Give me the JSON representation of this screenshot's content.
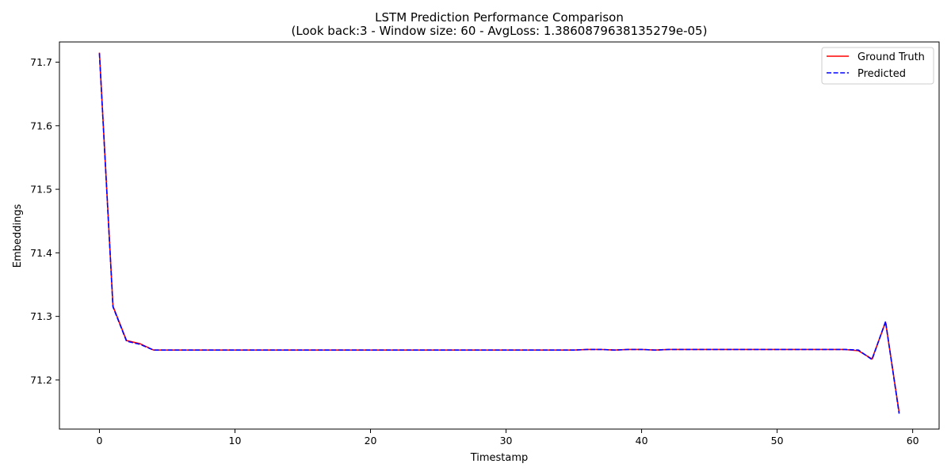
{
  "chart_data": {
    "type": "line",
    "title": "LSTM Prediction Performance Comparison",
    "subtitle": "(Look back:3 - Window size: 60 - AvgLoss: 1.3860879638135279e-05)",
    "xlabel": "Timestamp",
    "ylabel": "Embeddings",
    "xlim": [
      -2.95,
      61.95
    ],
    "ylim": [
      71.1227,
      71.7318
    ],
    "x_ticks": [
      0,
      10,
      20,
      30,
      40,
      50,
      60
    ],
    "y_ticks": [
      71.2,
      71.3,
      71.4,
      71.5,
      71.6,
      71.7
    ],
    "x_tick_labels": [
      "0",
      "10",
      "20",
      "30",
      "40",
      "50",
      "60"
    ],
    "y_tick_labels": [
      "71.2",
      "71.3",
      "71.4",
      "71.5",
      "71.6",
      "71.7"
    ],
    "grid": false,
    "legend_position": "top-right",
    "series": [
      {
        "name": "Ground Truth",
        "color": "#ff0000",
        "style": "solid",
        "x": [
          0,
          1,
          2,
          3,
          4,
          5,
          6,
          7,
          8,
          9,
          10,
          11,
          12,
          13,
          14,
          15,
          16,
          17,
          18,
          19,
          20,
          21,
          22,
          23,
          24,
          25,
          26,
          27,
          28,
          29,
          30,
          31,
          32,
          33,
          34,
          35,
          36,
          37,
          38,
          39,
          40,
          41,
          42,
          43,
          44,
          45,
          46,
          47,
          48,
          49,
          50,
          51,
          52,
          53,
          54,
          55,
          56,
          57,
          58,
          59
        ],
        "values": [
          71.715,
          71.316,
          71.262,
          71.257,
          71.247,
          71.247,
          71.247,
          71.247,
          71.247,
          71.247,
          71.247,
          71.247,
          71.247,
          71.247,
          71.247,
          71.247,
          71.247,
          71.247,
          71.247,
          71.247,
          71.247,
          71.247,
          71.247,
          71.247,
          71.247,
          71.247,
          71.247,
          71.247,
          71.247,
          71.247,
          71.247,
          71.247,
          71.247,
          71.247,
          71.247,
          71.247,
          71.248,
          71.248,
          71.247,
          71.248,
          71.248,
          71.247,
          71.248,
          71.248,
          71.248,
          71.248,
          71.248,
          71.248,
          71.248,
          71.248,
          71.248,
          71.248,
          71.248,
          71.248,
          71.248,
          71.248,
          71.246,
          71.233,
          71.291,
          71.149
        ]
      },
      {
        "name": "Predicted",
        "color": "#0000ff",
        "style": "dashed",
        "x": [
          0,
          1,
          2,
          3,
          4,
          5,
          6,
          7,
          8,
          9,
          10,
          11,
          12,
          13,
          14,
          15,
          16,
          17,
          18,
          19,
          20,
          21,
          22,
          23,
          24,
          25,
          26,
          27,
          28,
          29,
          30,
          31,
          32,
          33,
          34,
          35,
          36,
          37,
          38,
          39,
          40,
          41,
          42,
          43,
          44,
          45,
          46,
          47,
          48,
          49,
          50,
          51,
          52,
          53,
          54,
          55,
          56,
          57,
          58,
          59
        ],
        "values": [
          71.714,
          71.315,
          71.261,
          71.256,
          71.247,
          71.247,
          71.247,
          71.247,
          71.247,
          71.247,
          71.247,
          71.247,
          71.247,
          71.247,
          71.247,
          71.247,
          71.247,
          71.247,
          71.247,
          71.247,
          71.247,
          71.247,
          71.247,
          71.247,
          71.247,
          71.247,
          71.247,
          71.247,
          71.247,
          71.247,
          71.247,
          71.247,
          71.247,
          71.247,
          71.247,
          71.247,
          71.248,
          71.248,
          71.247,
          71.248,
          71.248,
          71.247,
          71.248,
          71.248,
          71.248,
          71.248,
          71.248,
          71.248,
          71.248,
          71.248,
          71.248,
          71.248,
          71.248,
          71.248,
          71.248,
          71.248,
          71.247,
          71.232,
          71.292,
          71.147
        ]
      }
    ]
  }
}
